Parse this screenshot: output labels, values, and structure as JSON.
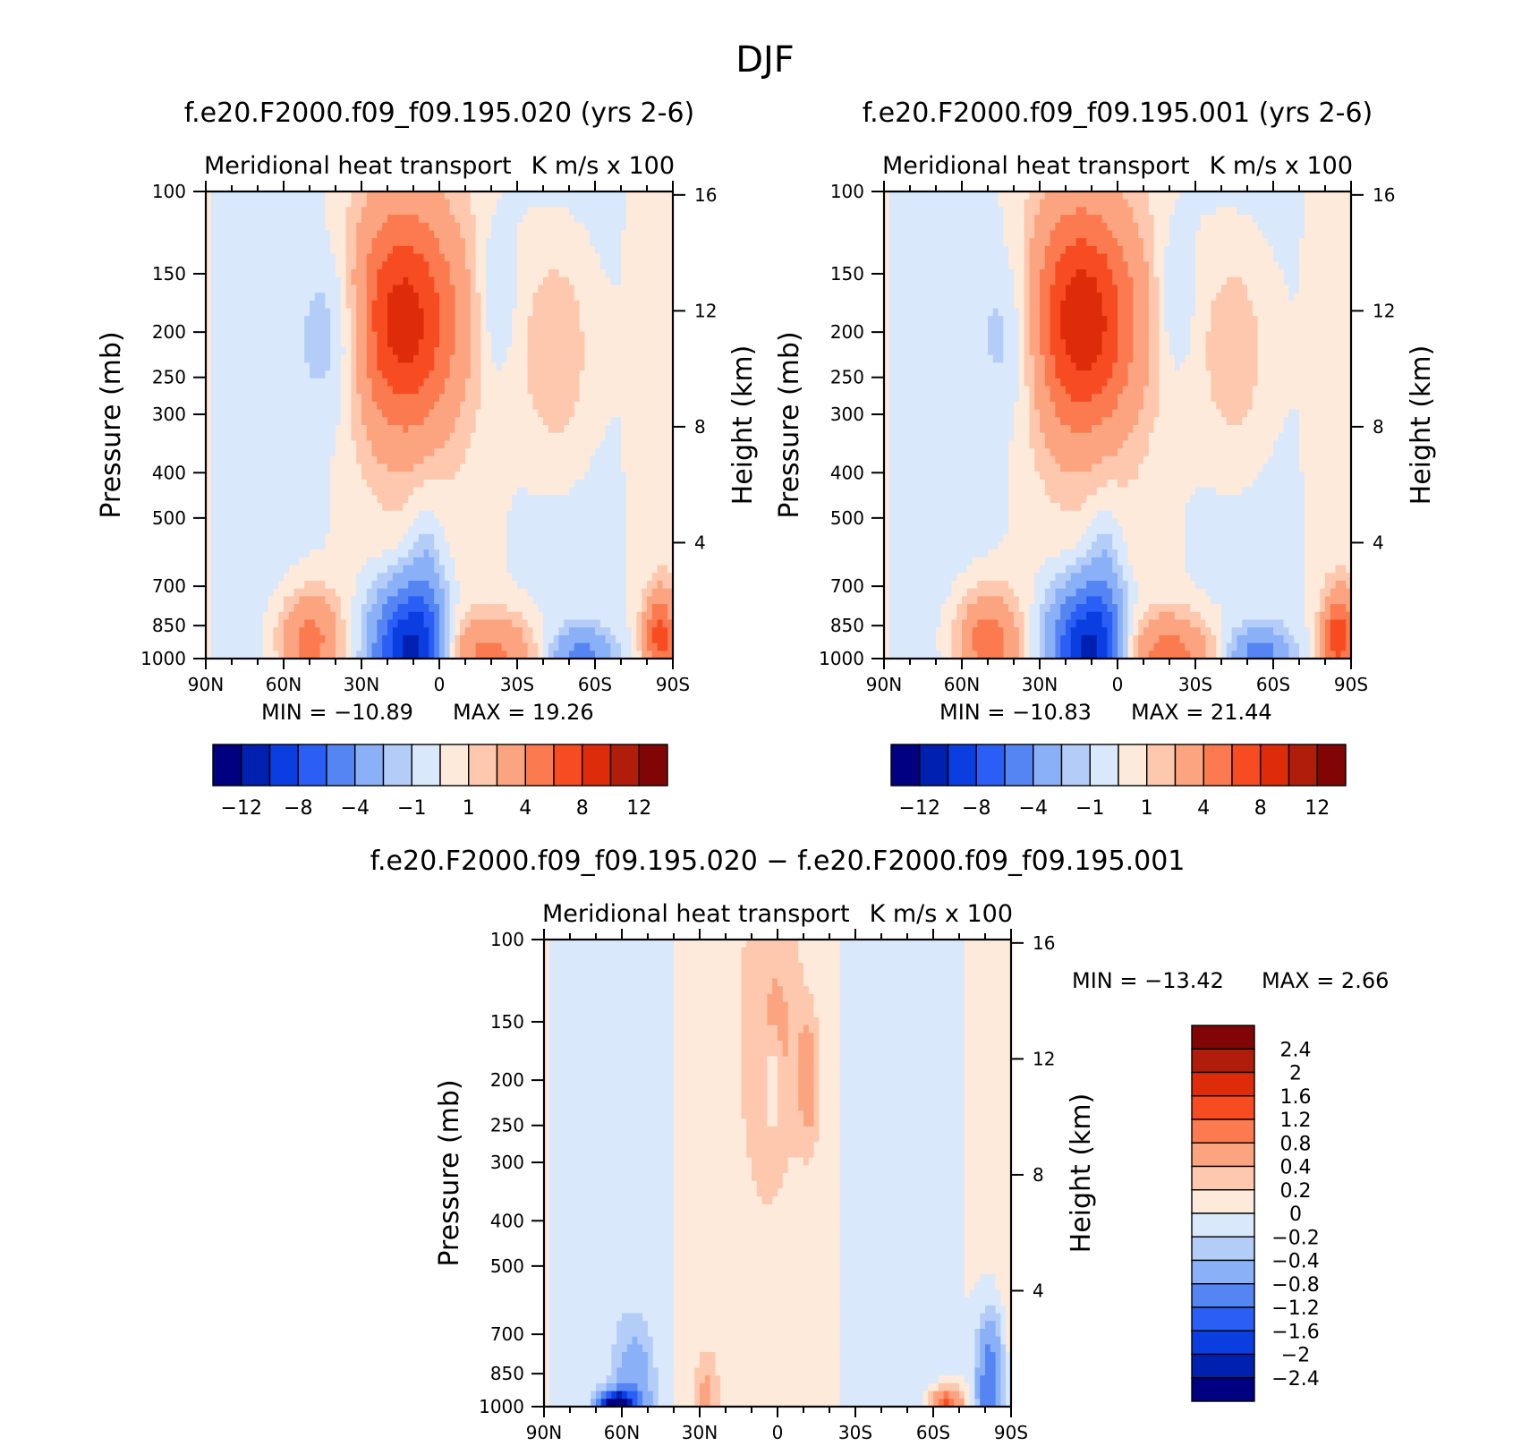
{
  "figure": {
    "title": "DJF",
    "colors": {
      "main_levels": [
        "#000080",
        "#0020b0",
        "#0b3ee0",
        "#2a5ef5",
        "#5585f2",
        "#8ab0f7",
        "#b4cdf8",
        "#d9e8fb",
        "#feeadb",
        "#fdc8ad",
        "#fca47f",
        "#fb7a4f",
        "#f74c22",
        "#de2c0a",
        "#b01e0b",
        "#820505"
      ],
      "diff_levels": [
        "#000080",
        "#0020b0",
        "#0b3ee0",
        "#2a5ef5",
        "#5585f2",
        "#8ab0f7",
        "#b4cdf8",
        "#d9e8fb",
        "#feeadb",
        "#fdc8ad",
        "#fca47f",
        "#fb7a4f",
        "#f74c22",
        "#de2c0a",
        "#b01e0b",
        "#820505"
      ]
    }
  },
  "chart_data": [
    {
      "type": "heatmap",
      "title": "f.e20.F2000.f09_f09.195.020 (yrs 2-6)",
      "left_subtitle": "Meridional heat transport",
      "right_subtitle": "K m/s x 100",
      "xlabel": "",
      "ylabel": "Pressure (mb)",
      "y2label": "Height (km)",
      "x_ticks": [
        "90N",
        "60N",
        "30N",
        "0",
        "30S",
        "60S",
        "90S"
      ],
      "x_range": [
        90,
        -90
      ],
      "y_ticks": [
        100,
        150,
        200,
        250,
        300,
        400,
        500,
        700,
        850,
        1000
      ],
      "y_range": [
        100,
        1000
      ],
      "y_scale": "log",
      "y2_ticks": [
        16,
        12,
        8,
        4
      ],
      "min_label": "MIN = −10.89",
      "max_label": "MAX =   19.26",
      "min": -10.89,
      "max": 19.26,
      "colorbar_labels": [
        "−12",
        "−8",
        "−4",
        "−1",
        "1",
        "4",
        "8",
        "12"
      ],
      "colorbar_levels": [
        -14,
        -12,
        -10,
        -8,
        -6,
        -4,
        -2,
        -1,
        0,
        1,
        2,
        4,
        6,
        8,
        10,
        12,
        14
      ],
      "features": [
        {
          "lat": 15,
          "p": 190,
          "value": 8.5,
          "width_deg": 22,
          "height_dp": 0.55
        },
        {
          "lat": 38,
          "p": 200,
          "value": -3.2,
          "width_deg": 14,
          "height_dp": 0.45
        },
        {
          "lat": -22,
          "p": 170,
          "value": -1.6,
          "width_deg": 7,
          "height_dp": 0.35
        },
        {
          "lat": -45,
          "p": 220,
          "value": 2.4,
          "width_deg": 14,
          "height_dp": 0.55
        },
        {
          "lat": 12,
          "p": 960,
          "value": -10.89,
          "width_deg": 14,
          "height_dp": 0.32
        },
        {
          "lat": -20,
          "p": 980,
          "value": 4.5,
          "width_deg": 18,
          "height_dp": 0.2
        },
        {
          "lat": -55,
          "p": 990,
          "value": -4.5,
          "width_deg": 12,
          "height_dp": 0.14
        },
        {
          "lat": 50,
          "p": 920,
          "value": 5.0,
          "width_deg": 12,
          "height_dp": 0.25
        },
        {
          "lat": -85,
          "p": 900,
          "value": 6.5,
          "width_deg": 6,
          "height_dp": 0.22
        },
        {
          "lat": 5,
          "p": 700,
          "value": -2.2,
          "width_deg": 7,
          "height_dp": 0.45
        }
      ]
    },
    {
      "type": "heatmap",
      "title": "f.e20.F2000.f09_f09.195.001 (yrs 2-6)",
      "left_subtitle": "Meridional heat transport",
      "right_subtitle": "K m/s x 100",
      "xlabel": "",
      "ylabel": "Pressure (mb)",
      "y2label": "Height (km)",
      "x_ticks": [
        "90N",
        "60N",
        "30N",
        "0",
        "30S",
        "60S",
        "90S"
      ],
      "x_range": [
        90,
        -90
      ],
      "y_ticks": [
        100,
        150,
        200,
        250,
        300,
        400,
        500,
        700,
        850,
        1000
      ],
      "y_range": [
        100,
        1000
      ],
      "y_scale": "log",
      "y2_ticks": [
        16,
        12,
        8,
        4
      ],
      "min_label": "MIN = −10.83",
      "max_label": "MAX =   21.44",
      "min": -10.83,
      "max": 21.44,
      "colorbar_labels": [
        "−12",
        "−8",
        "−4",
        "−1",
        "1",
        "4",
        "8",
        "12"
      ],
      "colorbar_levels": [
        -14,
        -12,
        -10,
        -8,
        -6,
        -4,
        -2,
        -1,
        0,
        1,
        2,
        4,
        6,
        8,
        10,
        12,
        14
      ],
      "features": [
        {
          "lat": 15,
          "p": 190,
          "value": 9.0,
          "width_deg": 22,
          "height_dp": 0.55
        },
        {
          "lat": 38,
          "p": 200,
          "value": -3.0,
          "width_deg": 14,
          "height_dp": 0.45
        },
        {
          "lat": -22,
          "p": 170,
          "value": -1.6,
          "width_deg": 7,
          "height_dp": 0.35
        },
        {
          "lat": -45,
          "p": 220,
          "value": 2.2,
          "width_deg": 14,
          "height_dp": 0.55
        },
        {
          "lat": 12,
          "p": 960,
          "value": -10.83,
          "width_deg": 14,
          "height_dp": 0.32
        },
        {
          "lat": -20,
          "p": 980,
          "value": 4.8,
          "width_deg": 18,
          "height_dp": 0.2
        },
        {
          "lat": -55,
          "p": 990,
          "value": -4.8,
          "width_deg": 12,
          "height_dp": 0.14
        },
        {
          "lat": 50,
          "p": 920,
          "value": 5.5,
          "width_deg": 12,
          "height_dp": 0.25
        },
        {
          "lat": -85,
          "p": 900,
          "value": 7.0,
          "width_deg": 6,
          "height_dp": 0.22
        },
        {
          "lat": 5,
          "p": 700,
          "value": -2.2,
          "width_deg": 7,
          "height_dp": 0.45
        }
      ]
    },
    {
      "type": "heatmap",
      "title": "f.e20.F2000.f09_f09.195.020 − f.e20.F2000.f09_f09.195.001",
      "left_subtitle": "Meridional heat transport",
      "right_subtitle": "K m/s x 100",
      "xlabel": "",
      "ylabel": "Pressure (mb)",
      "y2label": "Height (km)",
      "x_ticks": [
        "90N",
        "60N",
        "30N",
        "0",
        "30S",
        "60S",
        "90S"
      ],
      "x_range": [
        90,
        -90
      ],
      "y_ticks": [
        100,
        150,
        200,
        250,
        300,
        400,
        500,
        700,
        850,
        1000
      ],
      "y_range": [
        100,
        1000
      ],
      "y_scale": "log",
      "y2_ticks": [
        16,
        12,
        8,
        4
      ],
      "min_label": "MIN = −13.42",
      "max_label": "MAX =    2.66",
      "min": -13.42,
      "max": 2.66,
      "colorbar_labels": [
        "2.4",
        "2",
        "1.6",
        "1.2",
        "0.8",
        "0.4",
        "0.2",
        "0",
        "−0.2",
        "−0.4",
        "−0.8",
        "−1.2",
        "−1.6",
        "−2",
        "−2.4"
      ],
      "colorbar_levels": [
        -2.8,
        -2.4,
        -2,
        -1.6,
        -1.2,
        -0.8,
        -0.4,
        -0.2,
        0,
        0.2,
        0.4,
        0.8,
        1.2,
        1.6,
        2,
        2.4,
        2.8
      ],
      "features": [
        {
          "lat": 62,
          "p": 990,
          "value": -3.0,
          "width_deg": 6,
          "height_dp": 0.06
        },
        {
          "lat": 55,
          "p": 940,
          "value": -0.7,
          "width_deg": 7,
          "height_dp": 0.3
        },
        {
          "lat": -65,
          "p": 990,
          "value": 1.3,
          "width_deg": 6,
          "height_dp": 0.08
        },
        {
          "lat": -82,
          "p": 920,
          "value": -1.3,
          "width_deg": 5,
          "height_dp": 0.35
        },
        {
          "lat": 0,
          "p": 160,
          "value": 0.3,
          "width_deg": 9,
          "height_dp": 0.5
        },
        {
          "lat": -12,
          "p": 200,
          "value": 0.5,
          "width_deg": 4,
          "height_dp": 0.3
        },
        {
          "lat": 2,
          "p": 200,
          "value": -0.4,
          "width_deg": 3,
          "height_dp": 0.2
        },
        {
          "lat": 28,
          "p": 960,
          "value": 0.4,
          "width_deg": 4,
          "height_dp": 0.2
        }
      ]
    }
  ]
}
